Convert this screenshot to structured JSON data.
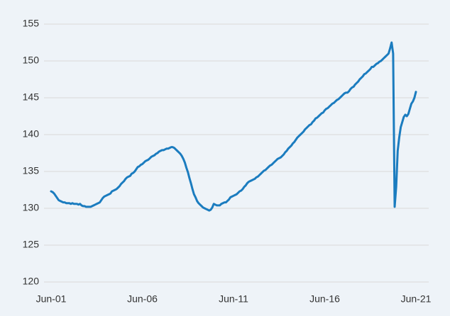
{
  "chart_data": {
    "type": "line",
    "categories": [
      "Jun-01",
      null,
      null,
      null,
      null,
      null,
      null,
      null,
      null,
      null,
      null,
      null,
      null,
      null,
      null,
      null,
      null,
      null,
      null,
      null,
      null,
      null,
      null,
      null,
      null,
      null,
      null,
      null,
      null,
      null,
      null,
      null,
      null,
      null,
      null,
      null,
      null,
      null,
      null,
      null,
      null,
      null,
      null,
      null,
      null,
      null,
      null,
      null,
      null,
      null,
      null,
      null,
      null,
      null,
      null,
      null,
      null,
      null,
      null,
      null,
      "Jun-06",
      null,
      null,
      null,
      null,
      null,
      null,
      null,
      null,
      null,
      null,
      null,
      null,
      null,
      null,
      null,
      null,
      null,
      null,
      null,
      null,
      null,
      null,
      null,
      null,
      null,
      null,
      null,
      null,
      null,
      null,
      null,
      null,
      null,
      null,
      null,
      null,
      null,
      null,
      null,
      null,
      null,
      null,
      null,
      null,
      null,
      null,
      null,
      null,
      null,
      null,
      null,
      null,
      null,
      null,
      null,
      null,
      null,
      null,
      null,
      "Jun-11",
      null,
      null,
      null,
      null,
      null,
      null,
      null,
      null,
      null,
      null,
      null,
      null,
      null,
      null,
      null,
      null,
      null,
      null,
      null,
      null,
      null,
      null,
      null,
      null,
      null,
      null,
      null,
      null,
      null,
      null,
      null,
      null,
      null,
      null,
      null,
      null,
      null,
      null,
      null,
      null,
      null,
      null,
      null,
      null,
      null,
      null,
      null,
      null,
      null,
      null,
      null,
      null,
      null,
      null,
      null,
      null,
      null,
      null,
      null,
      "Jun-16",
      null,
      null,
      null,
      null,
      null,
      null,
      null,
      null,
      null,
      null,
      null,
      null,
      null,
      null,
      null,
      null,
      null,
      null,
      null,
      null,
      null,
      null,
      null,
      null,
      null,
      null,
      null,
      null,
      null,
      null,
      null,
      null,
      null,
      null,
      null,
      null,
      null,
      null,
      null,
      null,
      null,
      null,
      null,
      null,
      null,
      null,
      null,
      null,
      null,
      null,
      null,
      null,
      null,
      null,
      null,
      null,
      null,
      null,
      null,
      "Jun-21"
    ],
    "series": [
      {
        "color": "#1b7cbf",
        "values": [
          132.3,
          132.2,
          132.0,
          131.7,
          131.4,
          131.1,
          131.0,
          130.9,
          130.8,
          130.8,
          130.7,
          130.7,
          130.7,
          130.6,
          130.7,
          130.6,
          130.6,
          130.6,
          130.5,
          130.6,
          130.4,
          130.3,
          130.3,
          130.2,
          130.2,
          130.2,
          130.2,
          130.3,
          130.4,
          130.5,
          130.6,
          130.7,
          130.8,
          131.1,
          131.4,
          131.6,
          131.7,
          131.8,
          131.9,
          132.0,
          132.3,
          132.4,
          132.5,
          132.6,
          132.8,
          133.0,
          133.3,
          133.5,
          133.7,
          134.0,
          134.2,
          134.3,
          134.4,
          134.7,
          134.8,
          135.0,
          135.3,
          135.6,
          135.7,
          135.9,
          136.0,
          136.2,
          136.4,
          136.5,
          136.6,
          136.8,
          137.0,
          137.1,
          137.2,
          137.4,
          137.5,
          137.7,
          137.8,
          137.9,
          137.9,
          138.0,
          138.1,
          138.1,
          138.2,
          138.3,
          138.3,
          138.2,
          138.0,
          137.8,
          137.6,
          137.4,
          137.1,
          136.7,
          136.2,
          135.5,
          134.9,
          134.1,
          133.4,
          132.6,
          131.9,
          131.5,
          131.0,
          130.7,
          130.5,
          130.3,
          130.1,
          130.0,
          129.9,
          129.8,
          129.7,
          129.8,
          130.1,
          130.6,
          130.5,
          130.4,
          130.4,
          130.4,
          130.6,
          130.7,
          130.8,
          130.8,
          131.0,
          131.2,
          131.5,
          131.6,
          131.7,
          131.8,
          131.9,
          132.1,
          132.3,
          132.4,
          132.6,
          132.9,
          133.1,
          133.4,
          133.6,
          133.7,
          133.8,
          133.9,
          134.0,
          134.2,
          134.3,
          134.5,
          134.7,
          134.9,
          135.1,
          135.2,
          135.4,
          135.6,
          135.8,
          135.9,
          136.1,
          136.3,
          136.5,
          136.7,
          136.8,
          136.9,
          137.1,
          137.3,
          137.6,
          137.8,
          138.1,
          138.3,
          138.5,
          138.8,
          139.0,
          139.3,
          139.6,
          139.8,
          140.0,
          140.2,
          140.4,
          140.7,
          140.9,
          141.1,
          141.3,
          141.4,
          141.7,
          141.9,
          142.2,
          142.3,
          142.5,
          142.7,
          142.9,
          143.0,
          143.3,
          143.5,
          143.6,
          143.8,
          144.0,
          144.2,
          144.3,
          144.5,
          144.7,
          144.8,
          145.0,
          145.2,
          145.4,
          145.6,
          145.7,
          145.7,
          145.9,
          146.2,
          146.4,
          146.5,
          146.8,
          147.0,
          147.2,
          147.5,
          147.7,
          147.9,
          148.2,
          148.3,
          148.5,
          148.7,
          148.9,
          149.2,
          149.2,
          149.4,
          149.6,
          149.7,
          149.9,
          150.0,
          150.2,
          150.4,
          150.6,
          150.8,
          151.0,
          151.7,
          152.5,
          151.0,
          130.2,
          132.9,
          137.8,
          139.6,
          141.0,
          141.7,
          142.4,
          142.7,
          142.5,
          142.8,
          143.5,
          144.2,
          144.5,
          145.0,
          145.8
        ]
      }
    ],
    "ylim": [
      120,
      155
    ],
    "yticks": [
      120,
      125,
      130,
      135,
      140,
      145,
      150,
      155
    ],
    "grid": true
  }
}
